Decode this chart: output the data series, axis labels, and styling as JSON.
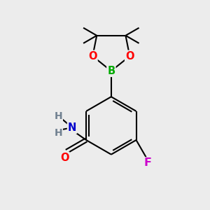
{
  "bg_color": "#ececec",
  "bond_color": "#000000",
  "bond_width": 1.5,
  "O_color": "#ff0000",
  "B_color": "#00aa00",
  "N_color": "#0000cc",
  "F_color": "#cc00cc",
  "figsize": [
    3.0,
    3.0
  ],
  "dpi": 100,
  "xlim": [
    0,
    10
  ],
  "ylim": [
    0,
    10
  ]
}
